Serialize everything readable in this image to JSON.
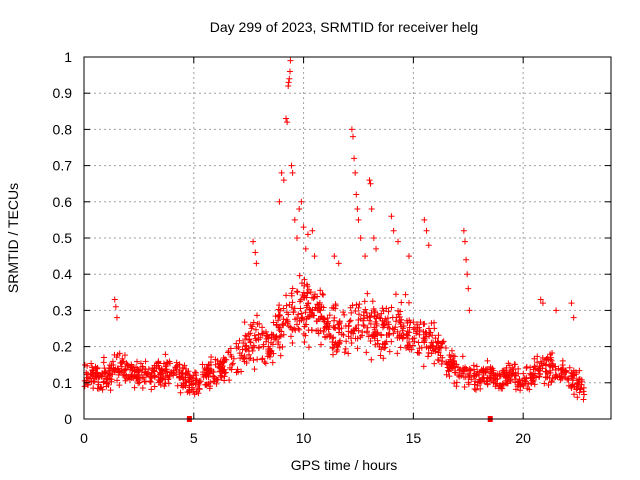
{
  "chart_data": {
    "type": "scatter",
    "title": "Day 299 of 2023, SRMTID for receiver helg",
    "xlabel": "GPS time / hours",
    "ylabel": "SRMTID / TECUs",
    "xlim": [
      0,
      24
    ],
    "ylim": [
      0,
      1
    ],
    "xticks": [
      0,
      5,
      10,
      15,
      20
    ],
    "xtick_labels": [
      "0",
      "5",
      "10",
      "15",
      "20"
    ],
    "yticks": [
      0,
      0.1,
      0.2,
      0.3,
      0.4,
      0.5,
      0.6,
      0.7,
      0.8,
      0.9,
      1
    ],
    "ytick_labels": [
      "0",
      "0.1",
      "0.2",
      "0.3",
      "0.4",
      "0.5",
      "0.6",
      "0.7",
      "0.8",
      "0.9",
      "1"
    ],
    "grid": true,
    "marker": "+",
    "series_color": "#ff0000",
    "baseline_markers": [
      4.8,
      18.5
    ],
    "envelope": {
      "x": [
        0,
        0.5,
        1,
        1.5,
        2,
        2.5,
        3,
        3.5,
        4,
        4.5,
        5,
        5.5,
        6,
        6.5,
        7,
        7.5,
        8,
        8.5,
        9,
        9.5,
        10,
        10.5,
        11,
        11.5,
        12,
        12.5,
        13,
        13.5,
        14,
        14.5,
        15,
        15.5,
        16,
        16.5,
        17,
        17.5,
        18,
        18.5,
        19,
        19.5,
        20,
        20.5,
        21,
        21.5,
        22,
        22.5,
        22.8
      ],
      "center": [
        0.12,
        0.11,
        0.12,
        0.14,
        0.13,
        0.12,
        0.12,
        0.13,
        0.14,
        0.11,
        0.1,
        0.12,
        0.13,
        0.15,
        0.18,
        0.2,
        0.22,
        0.21,
        0.26,
        0.3,
        0.32,
        0.3,
        0.26,
        0.24,
        0.25,
        0.27,
        0.26,
        0.25,
        0.26,
        0.27,
        0.24,
        0.23,
        0.2,
        0.16,
        0.13,
        0.12,
        0.11,
        0.12,
        0.11,
        0.12,
        0.11,
        0.12,
        0.14,
        0.13,
        0.12,
        0.1,
        0.08
      ],
      "spread": [
        0.06,
        0.05,
        0.06,
        0.07,
        0.06,
        0.06,
        0.05,
        0.06,
        0.06,
        0.06,
        0.05,
        0.06,
        0.06,
        0.07,
        0.08,
        0.09,
        0.1,
        0.1,
        0.12,
        0.14,
        0.13,
        0.12,
        0.1,
        0.1,
        0.11,
        0.12,
        0.11,
        0.1,
        0.1,
        0.11,
        0.1,
        0.1,
        0.09,
        0.07,
        0.06,
        0.05,
        0.05,
        0.05,
        0.05,
        0.05,
        0.05,
        0.06,
        0.07,
        0.06,
        0.06,
        0.05,
        0.04
      ]
    },
    "point_count": 1400,
    "highlights": [
      {
        "x": 1.4,
        "y": 0.33
      },
      {
        "x": 1.45,
        "y": 0.31
      },
      {
        "x": 1.5,
        "y": 0.28
      },
      {
        "x": 7.7,
        "y": 0.49
      },
      {
        "x": 7.8,
        "y": 0.46
      },
      {
        "x": 7.85,
        "y": 0.43
      },
      {
        "x": 8.9,
        "y": 0.6
      },
      {
        "x": 9.0,
        "y": 0.68
      },
      {
        "x": 9.1,
        "y": 0.66
      },
      {
        "x": 9.2,
        "y": 0.83
      },
      {
        "x": 9.25,
        "y": 0.82
      },
      {
        "x": 9.3,
        "y": 0.92
      },
      {
        "x": 9.32,
        "y": 0.93
      },
      {
        "x": 9.35,
        "y": 0.94
      },
      {
        "x": 9.38,
        "y": 0.96
      },
      {
        "x": 9.4,
        "y": 0.99
      },
      {
        "x": 9.45,
        "y": 0.7
      },
      {
        "x": 9.5,
        "y": 0.68
      },
      {
        "x": 9.6,
        "y": 0.55
      },
      {
        "x": 9.7,
        "y": 0.5
      },
      {
        "x": 9.8,
        "y": 0.58
      },
      {
        "x": 9.9,
        "y": 0.6
      },
      {
        "x": 10.0,
        "y": 0.53
      },
      {
        "x": 10.1,
        "y": 0.47
      },
      {
        "x": 10.2,
        "y": 0.51
      },
      {
        "x": 10.4,
        "y": 0.52
      },
      {
        "x": 10.5,
        "y": 0.45
      },
      {
        "x": 11.4,
        "y": 0.45
      },
      {
        "x": 11.6,
        "y": 0.43
      },
      {
        "x": 12.2,
        "y": 0.8
      },
      {
        "x": 12.25,
        "y": 0.78
      },
      {
        "x": 12.3,
        "y": 0.72
      },
      {
        "x": 12.35,
        "y": 0.68
      },
      {
        "x": 12.4,
        "y": 0.62
      },
      {
        "x": 12.45,
        "y": 0.58
      },
      {
        "x": 12.5,
        "y": 0.55
      },
      {
        "x": 12.6,
        "y": 0.5
      },
      {
        "x": 12.8,
        "y": 0.45
      },
      {
        "x": 13.0,
        "y": 0.66
      },
      {
        "x": 13.05,
        "y": 0.65
      },
      {
        "x": 13.1,
        "y": 0.58
      },
      {
        "x": 13.2,
        "y": 0.5
      },
      {
        "x": 13.3,
        "y": 0.47
      },
      {
        "x": 14.0,
        "y": 0.56
      },
      {
        "x": 14.1,
        "y": 0.52
      },
      {
        "x": 14.3,
        "y": 0.49
      },
      {
        "x": 14.8,
        "y": 0.45
      },
      {
        "x": 15.5,
        "y": 0.55
      },
      {
        "x": 15.6,
        "y": 0.52
      },
      {
        "x": 15.7,
        "y": 0.48
      },
      {
        "x": 17.3,
        "y": 0.52
      },
      {
        "x": 17.35,
        "y": 0.49
      },
      {
        "x": 17.4,
        "y": 0.44
      },
      {
        "x": 17.45,
        "y": 0.4
      },
      {
        "x": 17.5,
        "y": 0.36
      },
      {
        "x": 17.55,
        "y": 0.3
      },
      {
        "x": 20.8,
        "y": 0.33
      },
      {
        "x": 20.9,
        "y": 0.32
      },
      {
        "x": 21.5,
        "y": 0.3
      },
      {
        "x": 22.2,
        "y": 0.32
      },
      {
        "x": 22.3,
        "y": 0.28
      }
    ]
  }
}
